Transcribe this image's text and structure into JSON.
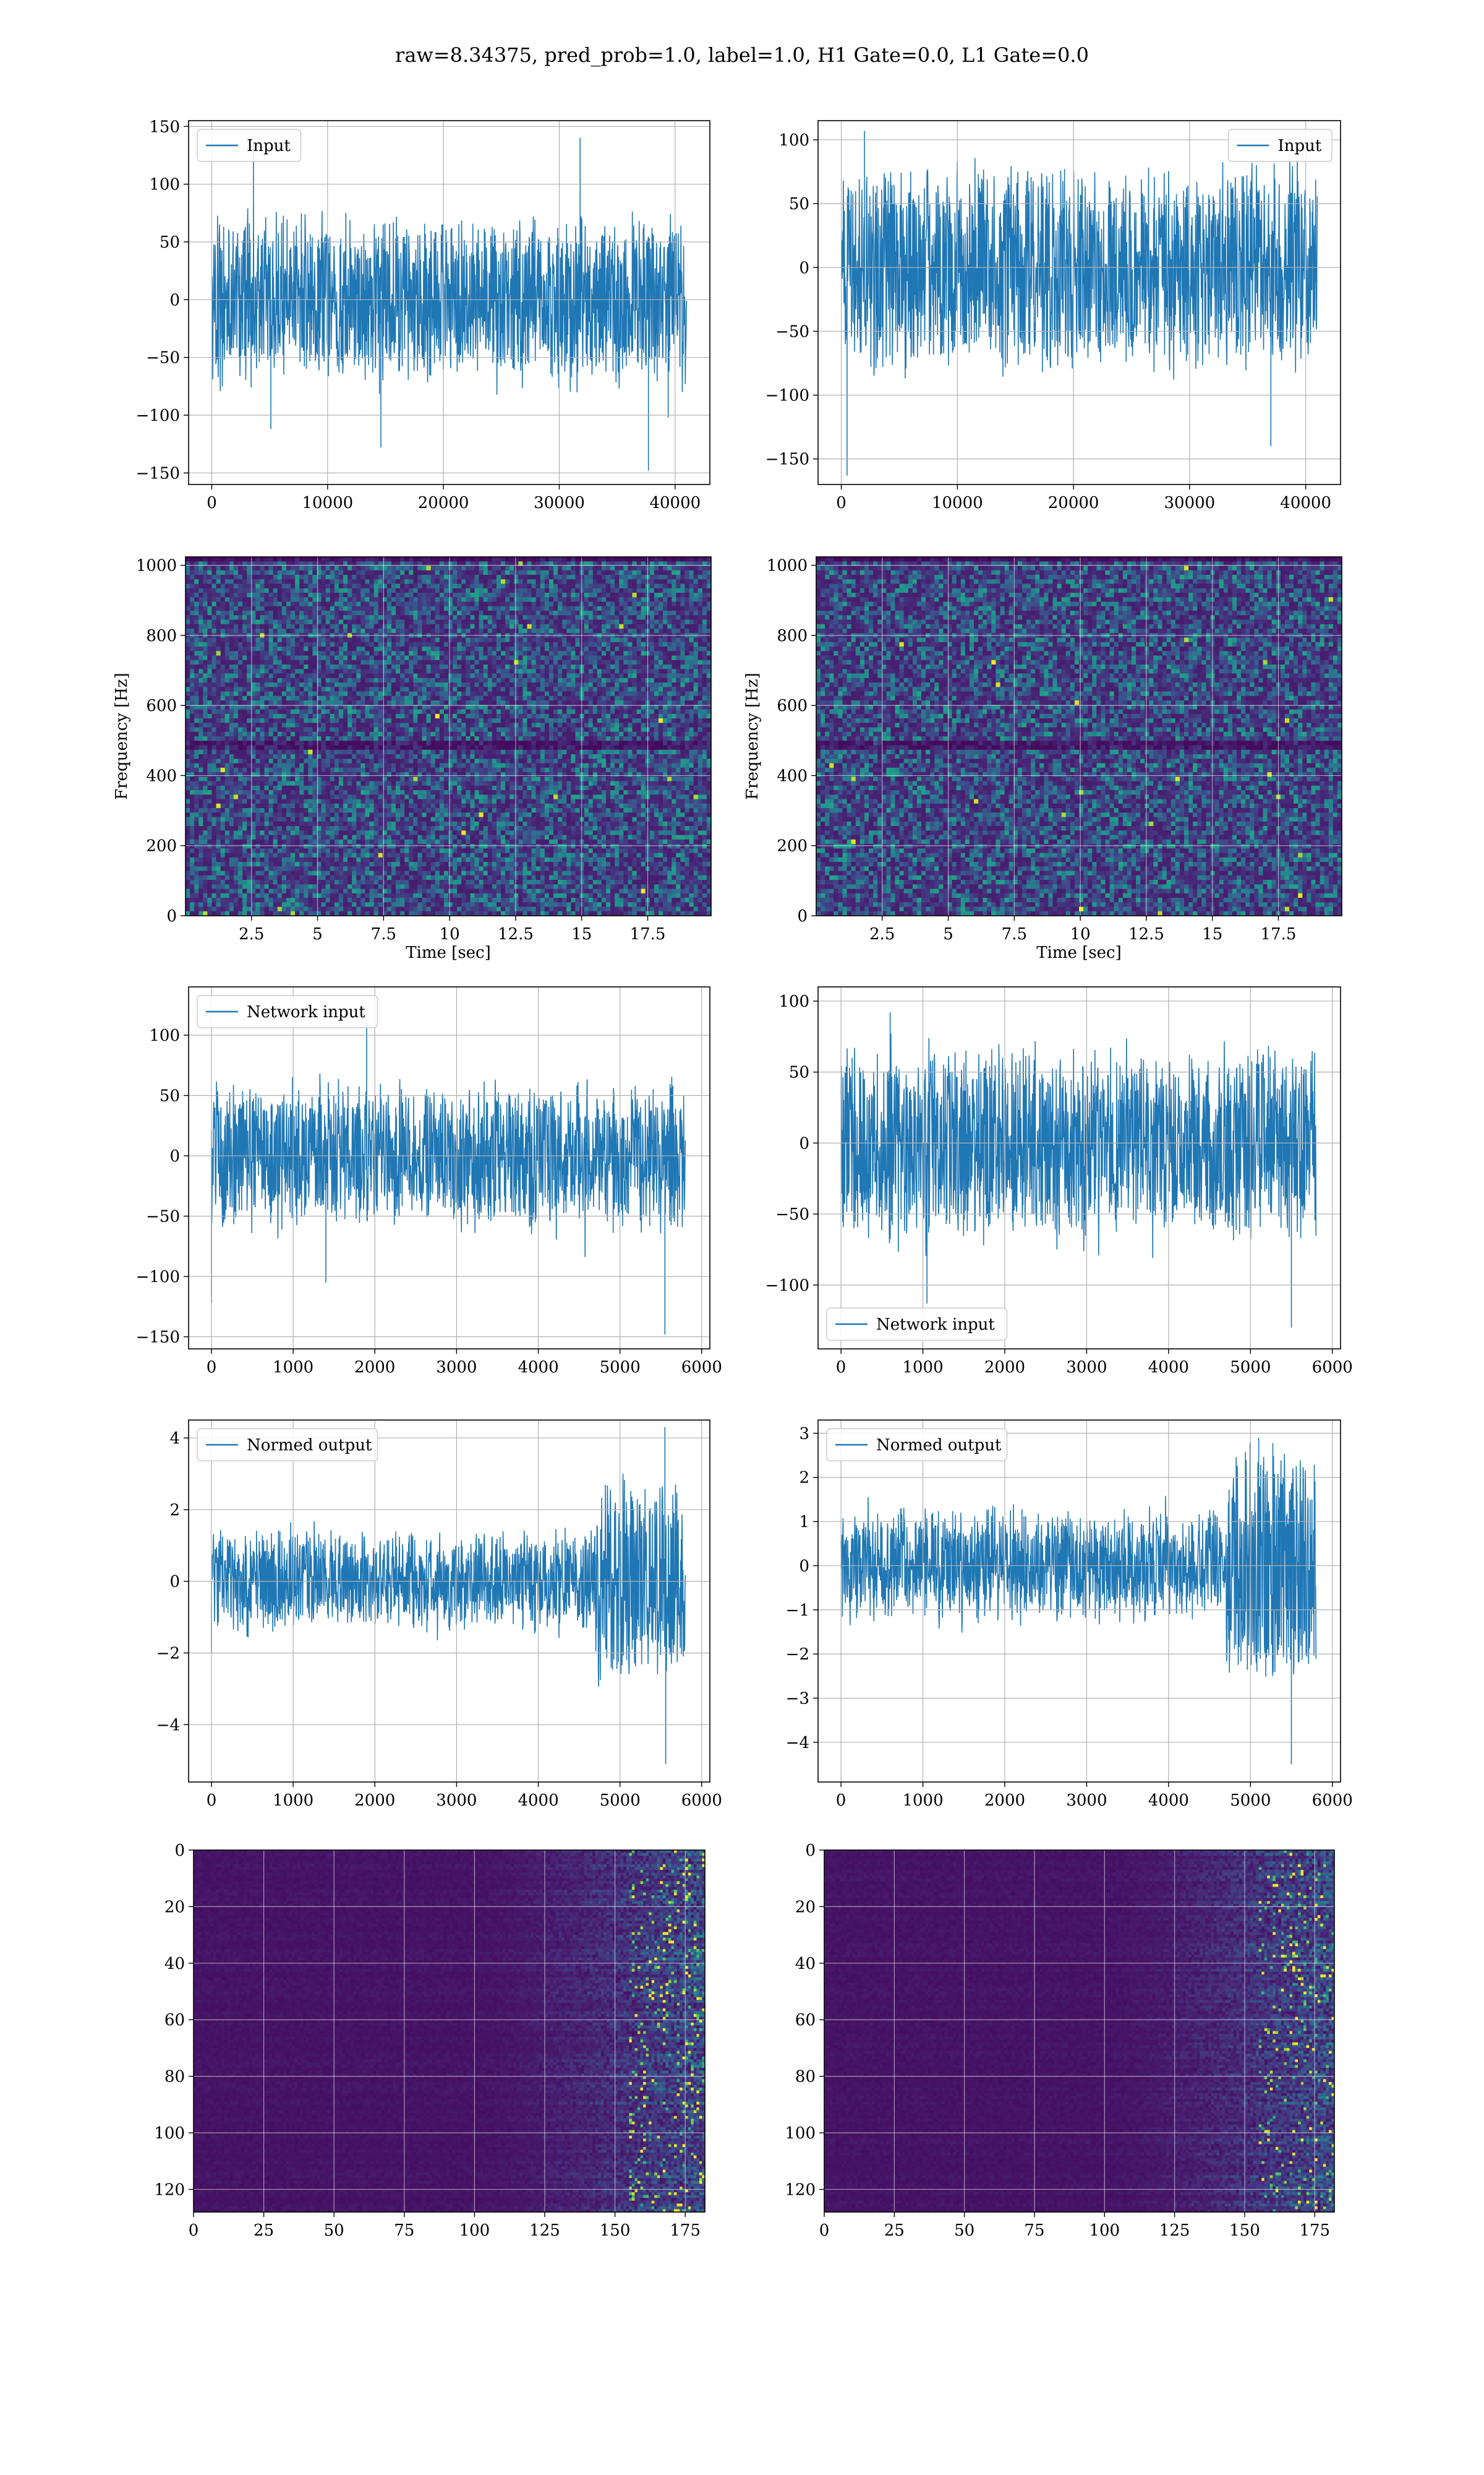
{
  "suptitle": "raw=8.34375, pred_prob=1.0, label=1.0, H1 Gate=0.0, L1 Gate=0.0",
  "colors": {
    "line": "#1f77b4",
    "grid": "#b0b0b0",
    "axes": "#000000"
  },
  "chart_data": [
    {
      "id": "h1-input",
      "type": "line",
      "row": 0,
      "col": 0,
      "series": [
        {
          "name": "Input",
          "n": 41000
        }
      ],
      "legend": "upper left",
      "xlim": [
        -2000,
        43000
      ],
      "ylim": [
        -160,
        155
      ],
      "xticks": [
        0,
        10000,
        20000,
        30000,
        40000
      ],
      "yticks": [
        -150,
        -100,
        -50,
        0,
        50,
        100,
        150
      ],
      "envelope": {
        "amp": 62,
        "noise": 10,
        "spikes": [
          [
            3600,
            136
          ],
          [
            31800,
            140
          ],
          [
            5100,
            -112
          ],
          [
            14600,
            -128
          ],
          [
            37700,
            -148
          ],
          [
            39400,
            -102
          ]
        ]
      },
      "grid": true
    },
    {
      "id": "l1-input",
      "type": "line",
      "row": 0,
      "col": 1,
      "series": [
        {
          "name": "Input",
          "n": 41000
        }
      ],
      "legend": "upper right",
      "xlim": [
        -2000,
        43000
      ],
      "ylim": [
        -170,
        115
      ],
      "xticks": [
        0,
        10000,
        20000,
        30000,
        40000
      ],
      "yticks": [
        -150,
        -100,
        -50,
        0,
        50,
        100
      ],
      "envelope": {
        "amp": 70,
        "noise": 10,
        "spikes": [
          [
            500,
            -163
          ],
          [
            2000,
            107
          ],
          [
            37000,
            -140
          ]
        ]
      },
      "grid": true
    },
    {
      "id": "h1-spectrogram",
      "type": "heatmap",
      "row": 1,
      "col": 0,
      "xlabel": "Time [sec]",
      "ylabel": "Frequency [Hz]",
      "xlim": [
        0,
        19.9
      ],
      "ylim": [
        0,
        1024
      ],
      "xticks": [
        2.5,
        5.0,
        7.5,
        10.0,
        12.5,
        15.0,
        17.5
      ],
      "yticks": [
        0,
        200,
        400,
        600,
        800,
        1000
      ],
      "grid": true
    },
    {
      "id": "l1-spectrogram",
      "type": "heatmap",
      "row": 1,
      "col": 1,
      "xlabel": "Time [sec]",
      "ylabel": "Frequency [Hz]",
      "xlim": [
        0,
        19.9
      ],
      "ylim": [
        0,
        1024
      ],
      "xticks": [
        2.5,
        5.0,
        7.5,
        10.0,
        12.5,
        15.0,
        17.5
      ],
      "yticks": [
        0,
        200,
        400,
        600,
        800,
        1000
      ],
      "grid": true
    },
    {
      "id": "h1-network-input",
      "type": "line",
      "row": 2,
      "col": 0,
      "series": [
        {
          "name": "Network input",
          "n": 5800
        }
      ],
      "legend": "upper left",
      "xlim": [
        -280,
        6100
      ],
      "ylim": [
        -160,
        140
      ],
      "xticks": [
        0,
        1000,
        2000,
        3000,
        4000,
        5000,
        6000
      ],
      "yticks": [
        -150,
        -100,
        -50,
        0,
        50,
        100
      ],
      "envelope": {
        "amp": 50,
        "noise": 10,
        "spikes": [
          [
            0,
            -122
          ],
          [
            1900,
            110
          ],
          [
            5550,
            -148
          ],
          [
            1400,
            -105
          ]
        ]
      },
      "grid": true
    },
    {
      "id": "l1-network-input",
      "type": "line",
      "row": 2,
      "col": 1,
      "series": [
        {
          "name": "Network input",
          "n": 5800
        }
      ],
      "legend": "lower left",
      "xlim": [
        -280,
        6100
      ],
      "ylim": [
        -145,
        110
      ],
      "xticks": [
        0,
        1000,
        2000,
        3000,
        4000,
        5000,
        6000
      ],
      "yticks": [
        -100,
        -50,
        0,
        50,
        100
      ],
      "envelope": {
        "amp": 58,
        "noise": 10,
        "spikes": [
          [
            1050,
            -113
          ],
          [
            5500,
            -130
          ],
          [
            600,
            92
          ]
        ]
      },
      "grid": true
    },
    {
      "id": "h1-normed-output",
      "type": "line",
      "row": 3,
      "col": 0,
      "series": [
        {
          "name": "Normed output",
          "n": 5800
        }
      ],
      "legend": "upper left",
      "xlim": [
        -280,
        6100
      ],
      "ylim": [
        -5.6,
        4.5
      ],
      "xticks": [
        0,
        1000,
        2000,
        3000,
        4000,
        5000,
        6000
      ],
      "yticks": [
        -4,
        -2,
        0,
        2,
        4
      ],
      "envelope": {
        "amp": 1.1,
        "noise": 0.25,
        "burst": [
          4700,
          5800,
          2.4
        ],
        "spikes": [
          [
            5550,
            4.3
          ],
          [
            5560,
            -5.1
          ],
          [
            0,
            -2.0
          ]
        ]
      },
      "grid": true
    },
    {
      "id": "l1-normed-output",
      "type": "line",
      "row": 3,
      "col": 1,
      "series": [
        {
          "name": "Normed output",
          "n": 5800
        }
      ],
      "legend": "upper left",
      "xlim": [
        -280,
        6100
      ],
      "ylim": [
        -4.9,
        3.3
      ],
      "xticks": [
        0,
        1000,
        2000,
        3000,
        4000,
        5000,
        6000
      ],
      "yticks": [
        -4,
        -3,
        -2,
        -1,
        0,
        1,
        2,
        3
      ],
      "envelope": {
        "amp": 1.0,
        "noise": 0.25,
        "burst": [
          4700,
          5800,
          2.4
        ],
        "spikes": [
          [
            5500,
            -4.5
          ],
          [
            5100,
            2.9
          ]
        ]
      },
      "grid": true
    },
    {
      "id": "h1-feature-map",
      "type": "heatmap",
      "row": 4,
      "col": 0,
      "xlim": [
        0,
        182
      ],
      "ylim": [
        128,
        0
      ],
      "xticks": [
        0,
        25,
        50,
        75,
        100,
        125,
        150,
        175
      ],
      "yticks": [
        0,
        20,
        40,
        60,
        80,
        100,
        120
      ],
      "grid": true
    },
    {
      "id": "l1-feature-map",
      "type": "heatmap",
      "row": 4,
      "col": 1,
      "xlim": [
        0,
        182
      ],
      "ylim": [
        128,
        0
      ],
      "xticks": [
        0,
        25,
        50,
        75,
        100,
        125,
        150,
        175
      ],
      "yticks": [
        0,
        20,
        40,
        60,
        80,
        100,
        120
      ],
      "grid": true
    }
  ]
}
